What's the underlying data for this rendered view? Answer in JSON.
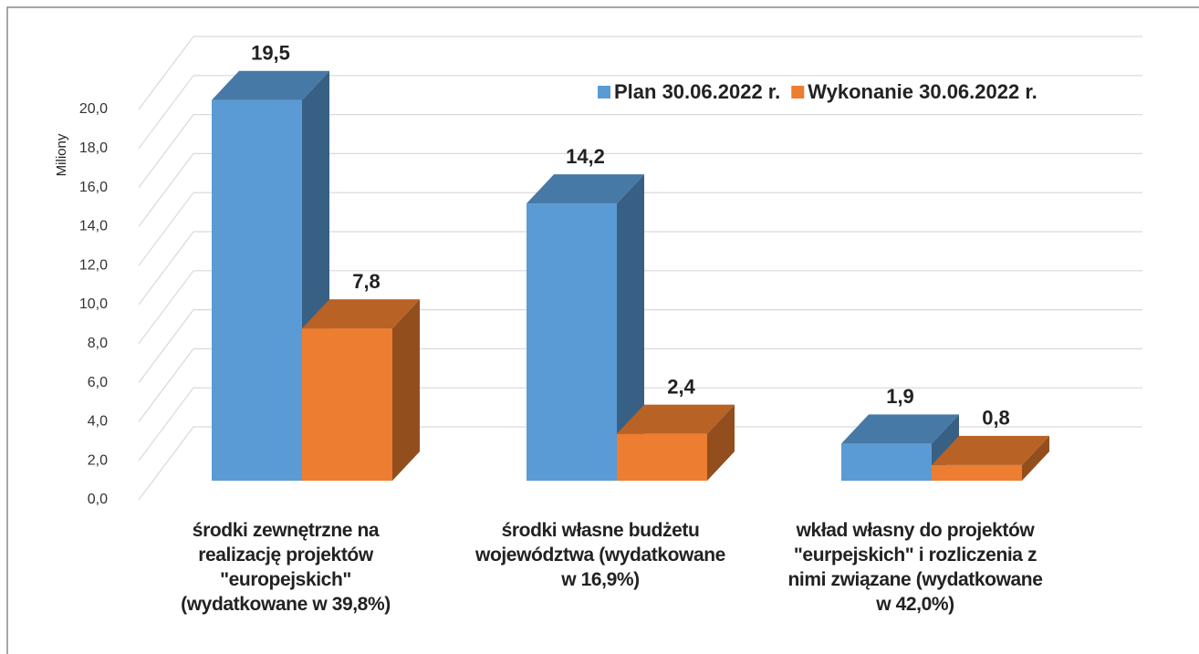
{
  "chart_data": {
    "type": "bar3d",
    "y_label": "Miliony",
    "categories": [
      "środki zewnętrzne na\nrealizację projektów\n\"europejskich\"\n(wydatkowane w 39,8%)",
      "środki własne budżetu\nwojewództwa (wydatkowane\nw 16,9%)",
      "wkład własny do projektów\n\"eurpejskich\"  i rozliczenia z\nnimi związane (wydatkowane\nw 42,0%)"
    ],
    "series": [
      {
        "name": "Plan 30.06.2022 r.",
        "color": "#5b9bd5",
        "values": [
          19.5,
          14.2,
          1.9
        ],
        "value_labels": [
          "19,5",
          "14,2",
          "1,9"
        ]
      },
      {
        "name": "Wykonanie 30.06.2022 r.",
        "color": "#ed7d31",
        "values": [
          7.8,
          2.4,
          0.8
        ],
        "value_labels": [
          "7,8",
          "2,4",
          "0,8"
        ]
      }
    ],
    "ylim": [
      0,
      20
    ],
    "yticks": [
      {
        "value": 0,
        "label": "0,0"
      },
      {
        "value": 2,
        "label": "2,0"
      },
      {
        "value": 4,
        "label": "4,0"
      },
      {
        "value": 6,
        "label": "6,0"
      },
      {
        "value": 8,
        "label": "8,0"
      },
      {
        "value": 10,
        "label": "10,0"
      },
      {
        "value": 12,
        "label": "12,0"
      },
      {
        "value": 14,
        "label": "14,0"
      },
      {
        "value": 16,
        "label": "16,0"
      },
      {
        "value": 18,
        "label": "18,0"
      },
      {
        "value": 20,
        "label": "20,0"
      }
    ],
    "grid": true,
    "legend": "top-right"
  }
}
